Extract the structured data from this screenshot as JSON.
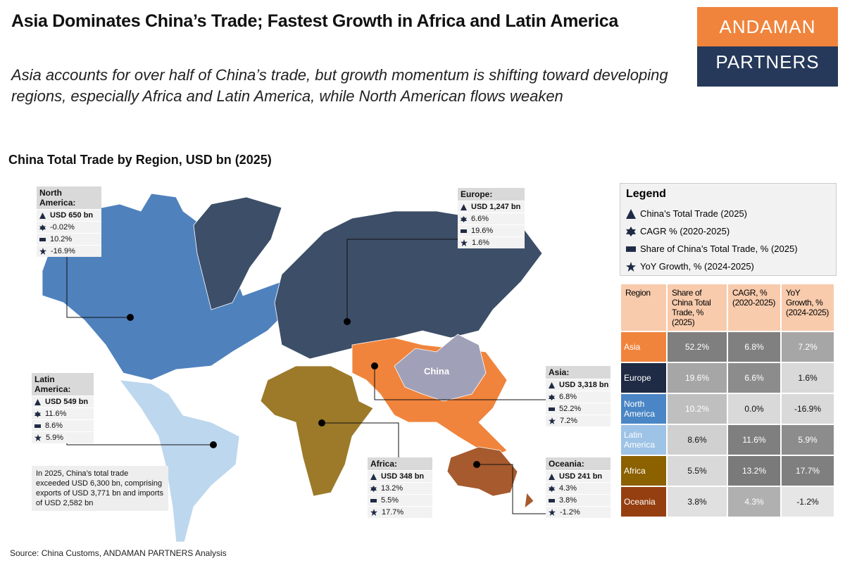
{
  "header": {
    "title": "Asia Dominates China’s Trade; Fastest Growth in Africa and Latin America",
    "subtitle": "Asia accounts for over half of China’s trade, but growth momentum is shifting toward developing regions, especially Africa and Latin America, while North American flows weaken",
    "logo": [
      "ANDAMAN",
      "PARTNERS"
    ]
  },
  "map": {
    "title": "China Total Trade by Region, USD bn (2025)",
    "china_label": "China",
    "callouts": [
      {
        "region": "North America:",
        "trade": "USD 650 bn",
        "cagr": "-0.02%",
        "share": "10.2%",
        "yoy": "-16.9%"
      },
      {
        "region": "Europe:",
        "trade": "USD 1,247 bn",
        "cagr": "6.6%",
        "share": "19.6%",
        "yoy": "1.6%"
      },
      {
        "region": "Latin America:",
        "trade": "USD 549 bn",
        "cagr": "11.6%",
        "share": "8.6%",
        "yoy": "5.9%"
      },
      {
        "region": "Asia:",
        "trade": "USD 3,318 bn",
        "cagr": "6.8%",
        "share": "52.2%",
        "yoy": "7.2%"
      },
      {
        "region": "Africa:",
        "trade": "USD 348 bn",
        "cagr": "13.2%",
        "share": "5.5%",
        "yoy": "17.7%"
      },
      {
        "region": "Oceania:",
        "trade": "USD 241 bn",
        "cagr": "4.3%",
        "share": "3.8%",
        "yoy": "-1.2%"
      }
    ],
    "note": "In 2025, China’s total trade exceeded USD 6,300 bn, comprising exports of USD 3,771 bn and imports of USD 2,582 bn"
  },
  "legend": {
    "title": "Legend",
    "items": [
      "China’s Total Trade (2025)",
      "CAGR % (2020-2025)",
      "Share of China’s Total Trade, % (2025)",
      "YoY Growth, % (2024-2025)"
    ]
  },
  "table": {
    "header": [
      "Region",
      "Share of China Total Trade, % (2025)",
      "CAGR, % (2020-2025)",
      "YoY Growth, % (2024-2025)"
    ],
    "rows": [
      [
        "Asia",
        "52.2%",
        "6.8%",
        "7.2%"
      ],
      [
        "Europe",
        "19.6%",
        "6.6%",
        "1.6%"
      ],
      [
        "North America",
        "10.2%",
        "0.0%",
        "-16.9%"
      ],
      [
        "Latin America",
        "8.6%",
        "11.6%",
        "5.9%"
      ],
      [
        "Africa",
        "5.5%",
        "13.2%",
        "17.7%"
      ],
      [
        "Oceania",
        "3.8%",
        "4.3%",
        "-1.2%"
      ]
    ]
  },
  "source": "Source: China Customs, ANDAMAN PARTNERS Analysis"
}
